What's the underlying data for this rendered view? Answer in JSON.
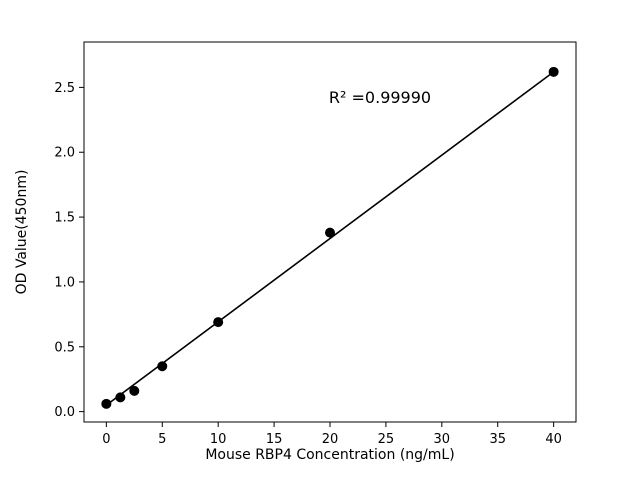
{
  "chart_data": {
    "type": "scatter",
    "title": "",
    "xlabel": "Mouse RBP4 Concentration (ng/mL)",
    "ylabel": "OD Value(450nm)",
    "x": [
      0,
      1.25,
      2.5,
      5,
      10,
      20,
      40
    ],
    "y": [
      0.06,
      0.11,
      0.16,
      0.35,
      0.69,
      1.38,
      2.62
    ],
    "fit_line": {
      "x": [
        0,
        40
      ],
      "y": [
        0.05,
        2.62
      ]
    },
    "annotation": "R² =0.99990",
    "xlim": [
      -2,
      42
    ],
    "ylim": [
      -0.08,
      2.85
    ],
    "xticks": [
      0,
      5,
      10,
      15,
      20,
      25,
      30,
      35,
      40
    ],
    "yticks": [
      0.0,
      0.5,
      1.0,
      1.5,
      2.0,
      2.5
    ],
    "marker_color": "#000000",
    "line_color": "#000000",
    "frame_color": "#000000",
    "grid": false,
    "legend": "none"
  }
}
